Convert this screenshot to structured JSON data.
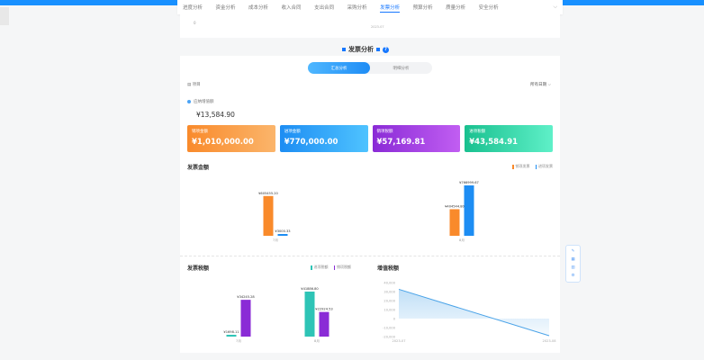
{
  "tabs": [
    "进度分析",
    "资金分析",
    "成本分析",
    "收入合同",
    "支出合同",
    "采购分析",
    "发票分析",
    "预算分析",
    "质量分析",
    "安全分析"
  ],
  "active_tab": "发票分析",
  "upper_chart": {
    "y_tick": "0",
    "x_tick": "2023-07"
  },
  "page_title": "发票分析",
  "toggle": {
    "summary": "汇总分析",
    "detail": "明细分析",
    "active": "汇总分析"
  },
  "project_label": "项目",
  "date_filter": "所有日期",
  "vat": {
    "label": "应纳增值额",
    "value": "¥13,584.90"
  },
  "cards": [
    {
      "label": "销项金额",
      "value": "¥1,010,000.00",
      "color": "#f98a2b"
    },
    {
      "label": "进项金额",
      "value": "¥770,000.00",
      "color": "#1d8df3"
    },
    {
      "label": "销项税额",
      "value": "¥57,169.81",
      "color": "#8a2bd6"
    },
    {
      "label": "进项税额",
      "value": "¥43,584.91",
      "color": "#19c08f"
    }
  ],
  "float_panel": {
    "icons": [
      "edit-icon",
      "grid-icon",
      "chart-icon",
      "settings-icon"
    ]
  },
  "chart_data": [
    {
      "type": "bar",
      "title": "发票金额",
      "categories": [
        "7月",
        "8月"
      ],
      "series": [
        {
          "name": "销项发票",
          "color": "#f98a2b",
          "values": [
            605455.2,
            404544.8
          ],
          "labels": [
            "¥605455.20",
            "¥404544.80"
          ]
        },
        {
          "name": "进项发票",
          "color": "#1d8df3",
          "values": [
            3000.33,
            766999.67
          ],
          "labels": [
            "¥3000.33",
            "¥766999.67"
          ]
        }
      ]
    },
    {
      "type": "bar",
      "title": "发票税额",
      "categories": [
        "7月",
        "8月"
      ],
      "series": [
        {
          "name": "进项税额",
          "color": "#2ec4b6",
          "values": [
            1698.11,
            41886.8
          ],
          "labels": [
            "¥1698.11",
            "¥41886.80"
          ]
        },
        {
          "name": "销项税额",
          "color": "#8a2bd6",
          "values": [
            34245.28,
            22924.53
          ],
          "labels": [
            "¥34245.28",
            "¥22924.53"
          ]
        }
      ]
    },
    {
      "type": "area",
      "title": "增值税额",
      "x": [
        "2023-07",
        "2023-08"
      ],
      "values": [
        32547.17,
        -18962.27
      ],
      "color": "#4aa3e8",
      "yticks": [
        "40,000",
        "30,000",
        "20,000",
        "10,000",
        "0",
        "-10,000",
        "-20,000"
      ],
      "ylim": [
        -20000,
        40000
      ]
    }
  ]
}
